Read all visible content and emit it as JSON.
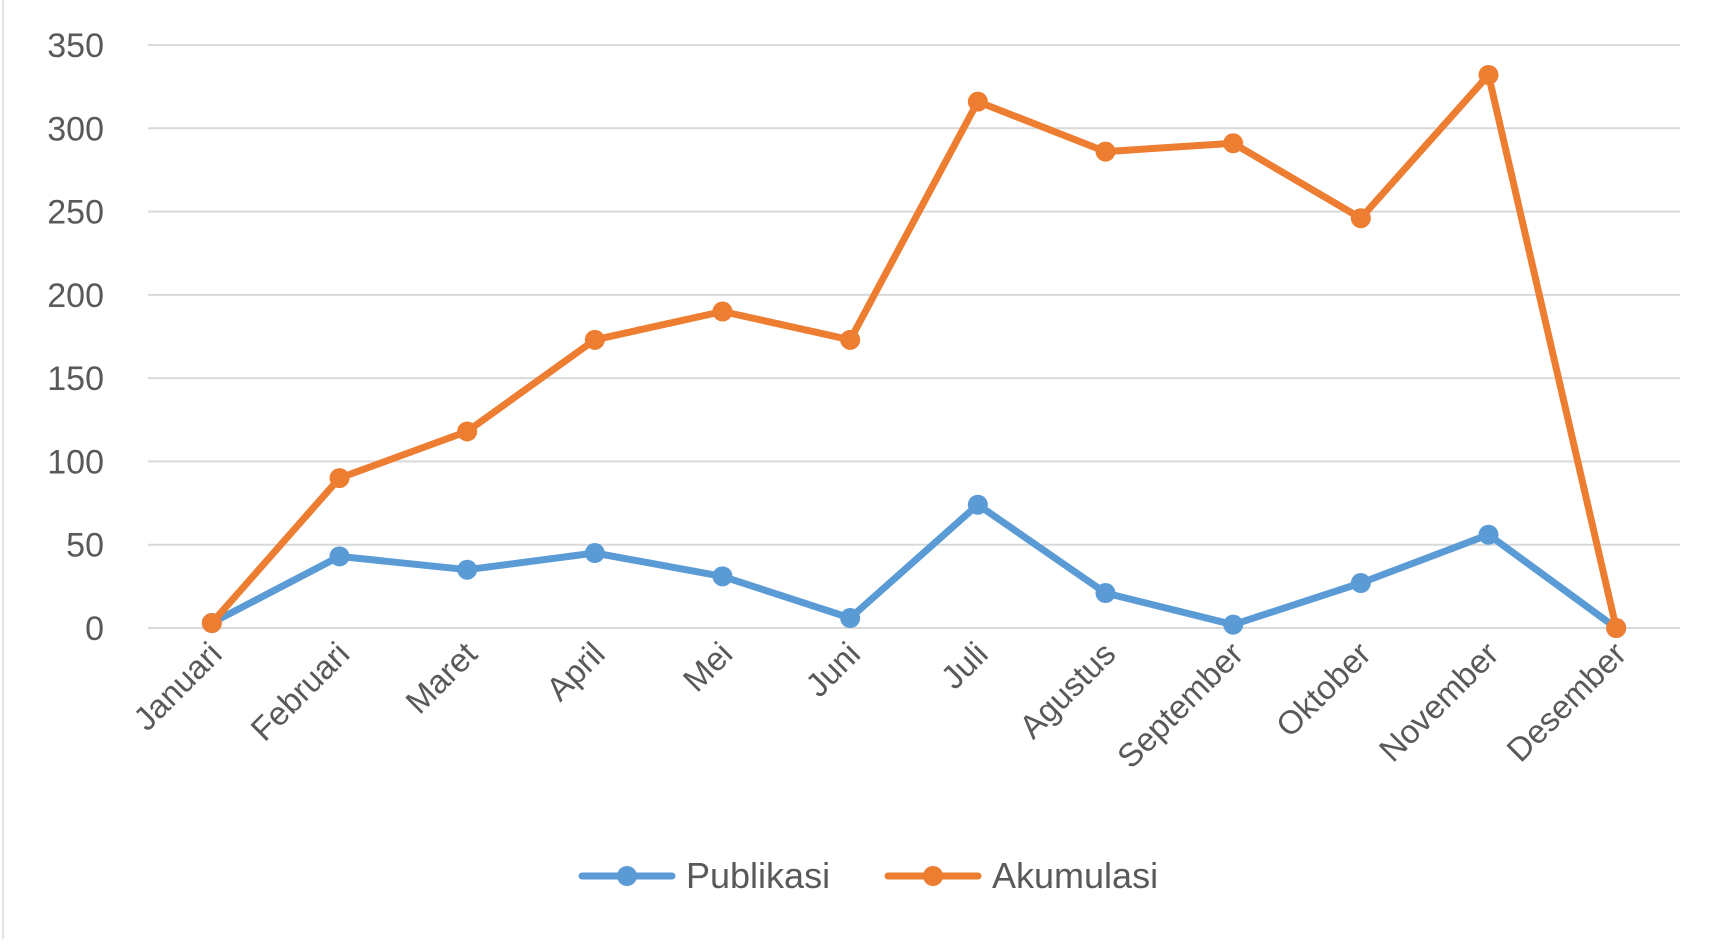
{
  "chart_data": {
    "type": "line",
    "categories": [
      "Januari",
      "Februari",
      "Maret",
      "April",
      "Mei",
      "Juni",
      "Juli",
      "Agustus",
      "September",
      "Oktober",
      "November",
      "Desember"
    ],
    "series": [
      {
        "name": "Publikasi",
        "color": "#5b9bd5",
        "values": [
          3,
          43,
          35,
          45,
          31,
          6,
          74,
          21,
          2,
          27,
          56,
          0
        ]
      },
      {
        "name": "Akumulasi",
        "color": "#ed7d31",
        "values": [
          3,
          90,
          118,
          173,
          190,
          173,
          316,
          286,
          291,
          246,
          332,
          0
        ]
      }
    ],
    "y_ticks": [
      "0",
      "50",
      "100",
      "150",
      "200",
      "250",
      "300",
      "350"
    ],
    "ylim": [
      0,
      350
    ],
    "grid": true,
    "legend_position": "bottom"
  }
}
